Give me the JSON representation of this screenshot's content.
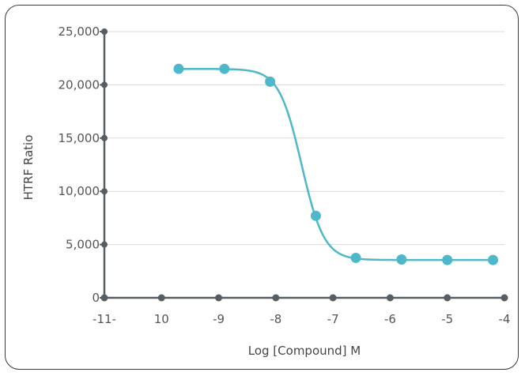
{
  "chart_data": {
    "type": "scatter",
    "title": "",
    "xlabel": "Log [Compound] M",
    "ylabel": "HTRF Ratio",
    "x_tick_labels": [
      "-11-",
      "10",
      "-9",
      "-8",
      "-7",
      "-6",
      "-5",
      "-4"
    ],
    "x_tick_values": [
      -11,
      -10,
      -9,
      -8,
      -7,
      -6,
      -5,
      -4
    ],
    "y_tick_labels": [
      "0",
      "5,000",
      "10,000",
      "15,000",
      "20,000",
      "25,000"
    ],
    "y_tick_values": [
      0,
      5000,
      10000,
      15000,
      20000,
      25000
    ],
    "xlim": [
      -11,
      -4
    ],
    "ylim": [
      0,
      25000
    ],
    "grid": "horizontal",
    "series": [
      {
        "points": [
          {
            "x": -9.7,
            "y": 21500
          },
          {
            "x": -8.9,
            "y": 21500
          },
          {
            "x": -8.1,
            "y": 20300
          },
          {
            "x": -7.3,
            "y": 7700
          },
          {
            "x": -6.6,
            "y": 3750
          },
          {
            "x": -5.8,
            "y": 3600
          },
          {
            "x": -5.0,
            "y": 3550
          },
          {
            "x": -4.2,
            "y": 3550
          }
        ],
        "fit": {
          "model": "4PL",
          "top": 21500,
          "bottom": 3550,
          "log_ic50": -7.55,
          "hill": 2.2
        }
      }
    ],
    "colors": {
      "series": "#4cb8c9",
      "axis": "#555e63",
      "grid": "#d9d9d9"
    }
  }
}
